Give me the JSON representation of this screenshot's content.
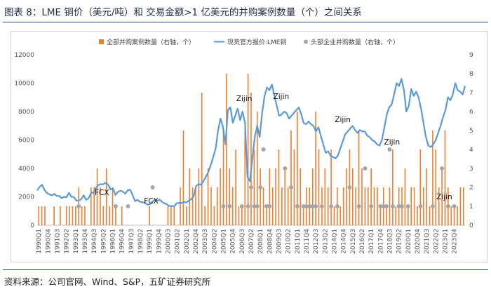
{
  "figure_title": "图表 8：LME 铜价（美元/吨）和 交易金额>1 亿美元的并购案例数量（个）之间关系",
  "source": "资料来源：公司官网、Wind、S&P，五矿证券研究所",
  "colors": {
    "bar": "#ED7D31",
    "line": "#5B9BD5",
    "dot": "#A5A5A5"
  },
  "chart_data": {
    "type": "bar+line+scatter",
    "legend_position": "top",
    "series_names": {
      "bars": "全部并购案例数量（右轴，个）",
      "line": "现货官方报价:LME铜",
      "dots": "头部企业并购数量（右轴，个）"
    },
    "y_left": {
      "min": 0,
      "max": 12000,
      "ticks": [
        "0",
        "2000",
        "4000",
        "6000",
        "8000",
        "10000",
        "12000"
      ]
    },
    "y_right": {
      "min": 0,
      "max": 9,
      "ticks": [
        "0",
        "1",
        "2",
        "3",
        "4",
        "5",
        "6",
        "7",
        "8",
        "9"
      ]
    },
    "x_labels": [
      "1990Q1",
      "1990Q4",
      "1991Q3",
      "1992Q2",
      "1993Q1",
      "1993Q4",
      "1994Q3",
      "1995Q2",
      "1996Q1",
      "1996Q4",
      "1997Q3",
      "1998Q2",
      "1999Q1",
      "1999Q4",
      "2000Q3",
      "2001Q2",
      "2002Q1",
      "2002Q4",
      "2003Q3",
      "2004Q2",
      "2005Q1",
      "2005Q4",
      "2006Q3",
      "2007Q2",
      "2008Q1",
      "2008Q4",
      "2009Q3",
      "2010Q2",
      "2011Q1",
      "2011Q4",
      "2012Q3",
      "2013Q2",
      "2014Q1",
      "2014Q4",
      "2015Q3",
      "2016Q2",
      "2017Q1",
      "2017Q4",
      "2018Q3",
      "2019Q2",
      "2020Q1",
      "2020Q4",
      "2021Q3",
      "2022Q2",
      "2023Q1",
      "2023Q4"
    ],
    "quarter_start": "1990Q1",
    "bars": [
      [
        1,
        1
      ],
      [
        2,
        1
      ],
      [
        7,
        1
      ],
      [
        9,
        1
      ],
      [
        10,
        1
      ],
      [
        11,
        1
      ],
      [
        13,
        1
      ],
      [
        14,
        1
      ],
      [
        16,
        1
      ],
      [
        18,
        2
      ],
      [
        20,
        1
      ],
      [
        22,
        2
      ],
      [
        24,
        1
      ],
      [
        25,
        2
      ],
      [
        27,
        3
      ],
      [
        28,
        3
      ],
      [
        29,
        1
      ],
      [
        30,
        1
      ],
      [
        31,
        3
      ],
      [
        32,
        1
      ],
      [
        33,
        2
      ],
      [
        34,
        1
      ],
      [
        35,
        2
      ],
      [
        37,
        1
      ],
      [
        43,
        1
      ],
      [
        49,
        1
      ],
      [
        59,
        1
      ],
      [
        64,
        1
      ],
      [
        65,
        2
      ],
      [
        67,
        1
      ],
      [
        68,
        2
      ],
      [
        70,
        1
      ],
      [
        71,
        1
      ],
      [
        72,
        1
      ],
      [
        73,
        1
      ],
      [
        74,
        1
      ],
      [
        75,
        2
      ],
      [
        76,
        1
      ],
      [
        77,
        1
      ],
      [
        78,
        1
      ],
      [
        80,
        1
      ],
      [
        81,
        1
      ],
      [
        82,
        2
      ],
      [
        84,
        1
      ],
      [
        85,
        1
      ],
      [
        86,
        1
      ],
      [
        87,
        2
      ],
      [
        88,
        2
      ],
      [
        89,
        1
      ],
      [
        90,
        1
      ],
      [
        91,
        1
      ],
      [
        92,
        2
      ],
      [
        93,
        1
      ],
      [
        94,
        1
      ],
      [
        95,
        1
      ],
      [
        96,
        1
      ],
      [
        97,
        2
      ],
      [
        98,
        3
      ],
      [
        99,
        1
      ],
      [
        100,
        1
      ],
      [
        101,
        2
      ],
      [
        102,
        1
      ],
      [
        103,
        2
      ],
      [
        104,
        2
      ],
      [
        105,
        1
      ],
      [
        106,
        1
      ],
      [
        107,
        5
      ],
      [
        108,
        3
      ],
      [
        109,
        2
      ],
      [
        110,
        4
      ],
      [
        111,
        1
      ],
      [
        112,
        2
      ],
      [
        113,
        2
      ],
      [
        114,
        1
      ],
      [
        115,
        3
      ],
      [
        116,
        1
      ],
      [
        117,
        2
      ],
      [
        118,
        4
      ],
      [
        119,
        3
      ],
      [
        120,
        1
      ],
      [
        121,
        3
      ],
      [
        122,
        2
      ],
      [
        123,
        7
      ],
      [
        124,
        1
      ],
      [
        125,
        2
      ],
      [
        126,
        1
      ],
      [
        127,
        4
      ],
      [
        128,
        2
      ],
      [
        129,
        7
      ],
      [
        130,
        2
      ],
      [
        131,
        3
      ],
      [
        132,
        1
      ],
      [
        133,
        1
      ],
      [
        134,
        1
      ],
      [
        135,
        2
      ],
      [
        136,
        1
      ],
      [
        137,
        1
      ],
      [
        138,
        1
      ],
      [
        139,
        8
      ],
      [
        140,
        2
      ],
      [
        141,
        4
      ],
      [
        142,
        2
      ],
      [
        143,
        3
      ],
      [
        144,
        2
      ],
      [
        145,
        3
      ],
      [
        146,
        4
      ],
      [
        147,
        2
      ],
      [
        148,
        3
      ],
      [
        149,
        6
      ],
      [
        150,
        2
      ],
      [
        151,
        1
      ],
      [
        152,
        3
      ],
      [
        153,
        4
      ],
      [
        154,
        5
      ],
      [
        155,
        3
      ],
      [
        156,
        2
      ],
      [
        157,
        5
      ],
      [
        158,
        4
      ],
      [
        159,
        2
      ],
      [
        160,
        3
      ],
      [
        161,
        2
      ],
      [
        162,
        5
      ],
      [
        163,
        3
      ],
      [
        164,
        4
      ],
      [
        165,
        2
      ],
      [
        166,
        1
      ],
      [
        167,
        3
      ],
      [
        168,
        5
      ],
      [
        169,
        2
      ],
      [
        170,
        2
      ],
      [
        171,
        3
      ],
      [
        172,
        6
      ],
      [
        173,
        1
      ],
      [
        174,
        3
      ],
      [
        175,
        1
      ],
      [
        176,
        2
      ],
      [
        177,
        3
      ],
      [
        178,
        4
      ],
      [
        179,
        2
      ],
      [
        180,
        1
      ],
      [
        181,
        2
      ],
      [
        182,
        5
      ],
      [
        183,
        2
      ],
      [
        184,
        4
      ],
      [
        185,
        4
      ],
      [
        186,
        3
      ],
      [
        187,
        2
      ],
      [
        188,
        5
      ],
      [
        189,
        2
      ],
      [
        190,
        3
      ],
      [
        191,
        6
      ],
      [
        192,
        4
      ],
      [
        193,
        2
      ],
      [
        194,
        3
      ],
      [
        195,
        4
      ],
      [
        196,
        2
      ],
      [
        197,
        3
      ],
      [
        198,
        2
      ],
      [
        199,
        1
      ],
      [
        200,
        2
      ],
      [
        201,
        1
      ],
      [
        202,
        2
      ],
      [
        203,
        1
      ],
      [
        204,
        1
      ],
      [
        205,
        2
      ],
      [
        206,
        2
      ],
      [
        207,
        1
      ],
      [
        208,
        2
      ],
      [
        209,
        1
      ],
      [
        210,
        1
      ],
      [
        211,
        2
      ],
      [
        212,
        1
      ],
      [
        213,
        1
      ],
      [
        214,
        2
      ],
      [
        215,
        1
      ],
      [
        216,
        2
      ],
      [
        217,
        4
      ],
      [
        218,
        1
      ],
      [
        219,
        2
      ],
      [
        220,
        2
      ],
      [
        221,
        4
      ],
      [
        222,
        1
      ],
      [
        223,
        2
      ],
      [
        224,
        3
      ],
      [
        225,
        2
      ],
      [
        226,
        5
      ],
      [
        227,
        3
      ],
      [
        228,
        2
      ],
      [
        229,
        1
      ],
      [
        230,
        2
      ],
      [
        231,
        2
      ],
      [
        232,
        1
      ],
      [
        233,
        2
      ],
      [
        234,
        1
      ],
      [
        235,
        2
      ],
      [
        236,
        1
      ],
      [
        237,
        2
      ],
      [
        238,
        2
      ],
      [
        239,
        1
      ],
      [
        240,
        1
      ],
      [
        241,
        2
      ],
      [
        242,
        4
      ],
      [
        243,
        3
      ],
      [
        244,
        1
      ],
      [
        245,
        3
      ],
      [
        246,
        2
      ],
      [
        247,
        1
      ],
      [
        248,
        6
      ],
      [
        249,
        2
      ],
      [
        250,
        3
      ],
      [
        251,
        4
      ],
      [
        252,
        2
      ],
      [
        253,
        1
      ],
      [
        254,
        2
      ],
      [
        255,
        3
      ],
      [
        256,
        2
      ],
      [
        257,
        2
      ],
      [
        258,
        1
      ],
      [
        259,
        1
      ],
      [
        260,
        2
      ],
      [
        261,
        3
      ],
      [
        262,
        4
      ],
      [
        263,
        2
      ],
      [
        264,
        2
      ],
      [
        265,
        3
      ],
      [
        266,
        1
      ],
      [
        267,
        2
      ],
      [
        268,
        1
      ]
    ],
    "bars_note_unused": "",
    "bar_values": [
      [
        1,
        1
      ],
      [
        2,
        1
      ],
      [
        3,
        1
      ],
      [
        6,
        1
      ],
      [
        8,
        1
      ],
      [
        10,
        1
      ],
      [
        11,
        1
      ],
      [
        12,
        1
      ],
      [
        13,
        2
      ],
      [
        14,
        1
      ],
      [
        15,
        1
      ],
      [
        17,
        2
      ],
      [
        18,
        2
      ],
      [
        19,
        3
      ],
      [
        20,
        2
      ],
      [
        21,
        1
      ],
      [
        22,
        3
      ],
      [
        23,
        1
      ],
      [
        24,
        2
      ],
      [
        25,
        1
      ],
      [
        27,
        1
      ],
      [
        36,
        1
      ],
      [
        42,
        1
      ],
      [
        43,
        1
      ],
      [
        44,
        1
      ],
      [
        46,
        2
      ],
      [
        47,
        5
      ],
      [
        48,
        1
      ],
      [
        49,
        3
      ],
      [
        50,
        2
      ],
      [
        51,
        2
      ],
      [
        52,
        3
      ],
      [
        53,
        7
      ],
      [
        54,
        1
      ],
      [
        55,
        3
      ],
      [
        56,
        2
      ],
      [
        57,
        1
      ],
      [
        58,
        2
      ],
      [
        59,
        3
      ],
      [
        60,
        5
      ],
      [
        61,
        8
      ],
      [
        62,
        3
      ],
      [
        63,
        2
      ],
      [
        64,
        4
      ],
      [
        65,
        1
      ],
      [
        66,
        1
      ],
      [
        67,
        5
      ],
      [
        68,
        8
      ],
      [
        69,
        7
      ],
      [
        70,
        4
      ],
      [
        71,
        6
      ],
      [
        72,
        3
      ],
      [
        73,
        2
      ],
      [
        74,
        1
      ],
      [
        75,
        3
      ],
      [
        76,
        2
      ],
      [
        77,
        3
      ],
      [
        78,
        4
      ],
      [
        79,
        2
      ],
      [
        80,
        3
      ],
      [
        81,
        2
      ],
      [
        82,
        5
      ],
      [
        83,
        4
      ],
      [
        84,
        6
      ],
      [
        85,
        3
      ],
      [
        86,
        1
      ],
      [
        87,
        2
      ],
      [
        88,
        2
      ],
      [
        89,
        3
      ],
      [
        90,
        6
      ],
      [
        91,
        4
      ],
      [
        92,
        2
      ],
      [
        93,
        3
      ],
      [
        94,
        2
      ],
      [
        95,
        4
      ],
      [
        96,
        1
      ],
      [
        97,
        2
      ],
      [
        98,
        1
      ],
      [
        99,
        2
      ],
      [
        100,
        3
      ],
      [
        101,
        4
      ],
      [
        102,
        3
      ],
      [
        103,
        2
      ],
      [
        104,
        5
      ],
      [
        105,
        3
      ],
      [
        106,
        2
      ],
      [
        107,
        2
      ],
      [
        108,
        3
      ],
      [
        109,
        2
      ],
      [
        110,
        2
      ],
      [
        111,
        1
      ],
      [
        112,
        2
      ],
      [
        113,
        1
      ],
      [
        114,
        2
      ],
      [
        115,
        4
      ],
      [
        116,
        1
      ],
      [
        117,
        2
      ],
      [
        118,
        2
      ],
      [
        119,
        3
      ],
      [
        120,
        1
      ],
      [
        121,
        2
      ],
      [
        122,
        2
      ],
      [
        123,
        1
      ],
      [
        124,
        4
      ],
      [
        125,
        2
      ],
      [
        126,
        3
      ],
      [
        127,
        1
      ],
      [
        128,
        5
      ],
      [
        129,
        4
      ],
      [
        130,
        2
      ],
      [
        131,
        3
      ],
      [
        132,
        5
      ],
      [
        133,
        2
      ],
      [
        134,
        1
      ],
      [
        135,
        1
      ],
      [
        136,
        1
      ],
      [
        137,
        2
      ],
      [
        138,
        2
      ]
    ],
    "bar_counts": [
      1,
      1,
      1,
      0,
      0,
      1,
      0,
      1,
      0,
      1,
      1,
      1,
      1,
      2,
      1,
      1,
      0,
      2,
      2,
      3,
      2,
      1,
      3,
      1,
      2,
      1,
      0,
      1,
      0,
      0,
      0,
      0,
      0,
      0,
      0,
      0,
      1,
      0,
      0,
      0,
      0,
      0,
      1,
      1,
      1,
      0,
      2,
      5,
      1,
      3,
      2,
      2,
      3,
      7,
      1,
      3,
      2,
      1,
      2,
      3,
      5,
      8,
      3,
      2,
      4,
      1,
      1,
      5,
      8,
      7,
      4,
      6,
      3,
      2,
      1,
      3,
      2,
      3,
      4,
      2,
      3,
      2,
      5,
      4,
      6,
      3,
      1,
      2,
      2,
      3,
      6,
      4,
      2,
      3,
      2,
      4,
      1,
      2,
      1,
      2,
      3,
      4,
      3,
      2,
      5,
      3,
      2,
      2,
      3,
      2,
      2,
      1,
      2,
      1,
      2,
      4,
      1,
      2,
      2,
      3,
      1,
      2,
      2,
      1,
      4,
      2,
      3,
      1,
      5,
      4,
      2,
      3,
      5,
      2,
      1,
      1,
      1,
      2,
      2
    ],
    "line_copper": [
      2450,
      2700,
      2850,
      2480,
      2270,
      2170,
      2100,
      2200,
      2060,
      2070,
      1900,
      2000,
      1960,
      2280,
      2000,
      1980,
      1740,
      1730,
      1830,
      2110,
      1790,
      1900,
      2250,
      2300,
      2620,
      2820,
      2890,
      2880,
      3000,
      2860,
      2520,
      2600,
      2130,
      2340,
      2430,
      2380,
      2220,
      2460,
      2500,
      2150,
      1700,
      1790,
      1650,
      1620,
      1580,
      1450,
      1470,
      1650,
      1780,
      1720,
      1800,
      1650,
      1540,
      1480,
      1350,
      1370,
      1320,
      1540,
      1580,
      1560,
      1640,
      1600,
      1720,
      1830,
      2040,
      2750,
      2900,
      2840,
      3100,
      3400,
      3750,
      4230,
      4800,
      5400,
      6700,
      7500,
      6900,
      5700,
      8100,
      8300,
      7200,
      7700,
      8200,
      7400,
      8000,
      7200,
      3400,
      3100,
      4650,
      6200,
      7000,
      6200,
      7900,
      9100,
      9700,
      9500,
      9900,
      9100,
      8400,
      7700,
      7800,
      8000,
      7900,
      7500,
      7700,
      7900,
      8100,
      8300,
      7800,
      7200,
      7100,
      7300,
      7100,
      7000,
      6600,
      6900,
      6300,
      5700,
      5100,
      5200,
      4900,
      4800,
      4700,
      4900,
      5400,
      5900,
      6400,
      6600,
      6800,
      7000,
      6700,
      6500,
      6700,
      6600,
      6600,
      6300,
      6200,
      6000,
      5900,
      5700,
      5600,
      6000,
      6900,
      7800,
      8300,
      8500,
      9200,
      10000,
      9800,
      10300,
      9500,
      8000,
      8400,
      9600,
      9100,
      9400,
      9000,
      8200,
      7200,
      6200,
      5600,
      5500,
      5700,
      6000,
      6500,
      7000,
      7600,
      8100,
      9000,
      8800,
      9200,
      10000,
      9500,
      9400,
      9200,
      9800
    ],
    "dots_note": "",
    "annotations": [
      "FCX",
      "FCX",
      "Zijin",
      "Zijin",
      "Zijin",
      "Zijin",
      "Zijin"
    ]
  }
}
